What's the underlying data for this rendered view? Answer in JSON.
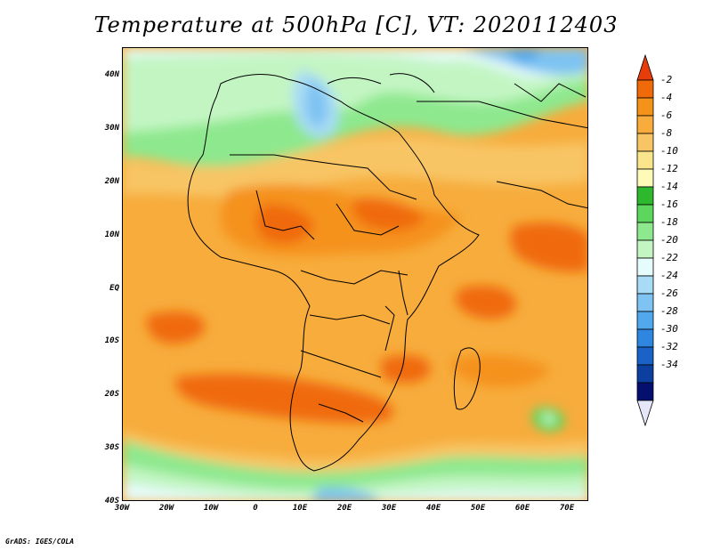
{
  "title": "Temperature at 500hPa [C], VT: 2020112403",
  "credit": "GrADS: IGES/COLA",
  "lat_ticks": [
    "40N",
    "30N",
    "20N",
    "10N",
    "EQ",
    "10S",
    "20S",
    "30S",
    "40S"
  ],
  "lon_ticks": [
    "30W",
    "20W",
    "10W",
    "0",
    "10E",
    "20E",
    "30E",
    "40E",
    "50E",
    "60E",
    "70E"
  ],
  "colorbar": {
    "labels": [
      "-2",
      "-4",
      "-6",
      "-8",
      "-10",
      "-12",
      "-14",
      "-16",
      "-18",
      "-20",
      "-22",
      "-24",
      "-26",
      "-28",
      "-30",
      "-32",
      "-34"
    ],
    "colors": [
      "#e63d0a",
      "#f06a0a",
      "#f5921a",
      "#f7ac3c",
      "#f8c565",
      "#fbe58c",
      "#fefbb8",
      "#2eb82e",
      "#5cd65c",
      "#8ee88e",
      "#c3f5c3",
      "#e6fbfb",
      "#a8dbf5",
      "#7ec3f2",
      "#52a8ed",
      "#2f86e0",
      "#1a62c8",
      "#0d3fa0",
      "#05106e",
      "#e6e6fa"
    ]
  },
  "map": {
    "variable": "Temperature at 500hPa",
    "units": "C",
    "valid_time": "2020112403",
    "lon_range": [
      -30,
      75
    ],
    "lat_range": [
      -40,
      45
    ]
  }
}
